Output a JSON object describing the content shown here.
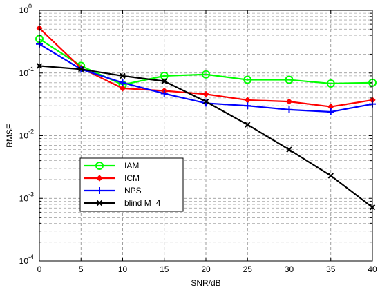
{
  "chart_data": {
    "type": "line",
    "title": "",
    "xlabel": "SNR/dB",
    "ylabel": "RMSE",
    "xlim": [
      0,
      40
    ],
    "ylim": [
      0.0001,
      1
    ],
    "yscale": "log",
    "grid": true,
    "legend_position": "lower-left",
    "x": [
      0,
      5,
      10,
      15,
      20,
      25,
      30,
      35,
      40
    ],
    "x_tick_labels": [
      "0",
      "5",
      "10",
      "15",
      "20",
      "25",
      "30",
      "35",
      "40"
    ],
    "y_tick_labels": [
      {
        "base": "10",
        "exp": "-4",
        "value": 0.0001
      },
      {
        "base": "10",
        "exp": "-3",
        "value": 0.001
      },
      {
        "base": "10",
        "exp": "-2",
        "value": 0.01
      },
      {
        "base": "10",
        "exp": "-1",
        "value": 0.1
      },
      {
        "base": "10",
        "exp": "0",
        "value": 1
      }
    ],
    "series": [
      {
        "name": "IAM",
        "color": "#00ff00",
        "marker": "circle",
        "values": [
          0.35,
          0.13,
          0.065,
          0.09,
          0.095,
          0.078,
          0.078,
          0.068,
          0.07
        ]
      },
      {
        "name": "ICM",
        "color": "#ff0000",
        "marker": "diamond",
        "values": [
          0.52,
          0.12,
          0.057,
          0.052,
          0.046,
          0.037,
          0.035,
          0.029,
          0.037
        ]
      },
      {
        "name": "NPS",
        "color": "#0000ff",
        "marker": "plus",
        "values": [
          0.29,
          0.115,
          0.07,
          0.047,
          0.033,
          0.03,
          0.026,
          0.024,
          0.032
        ]
      },
      {
        "name": "blind M=4",
        "color": "#000000",
        "marker": "x",
        "values": [
          0.13,
          0.115,
          0.09,
          0.074,
          0.035,
          0.015,
          0.006,
          0.0023,
          0.00072
        ]
      }
    ]
  }
}
